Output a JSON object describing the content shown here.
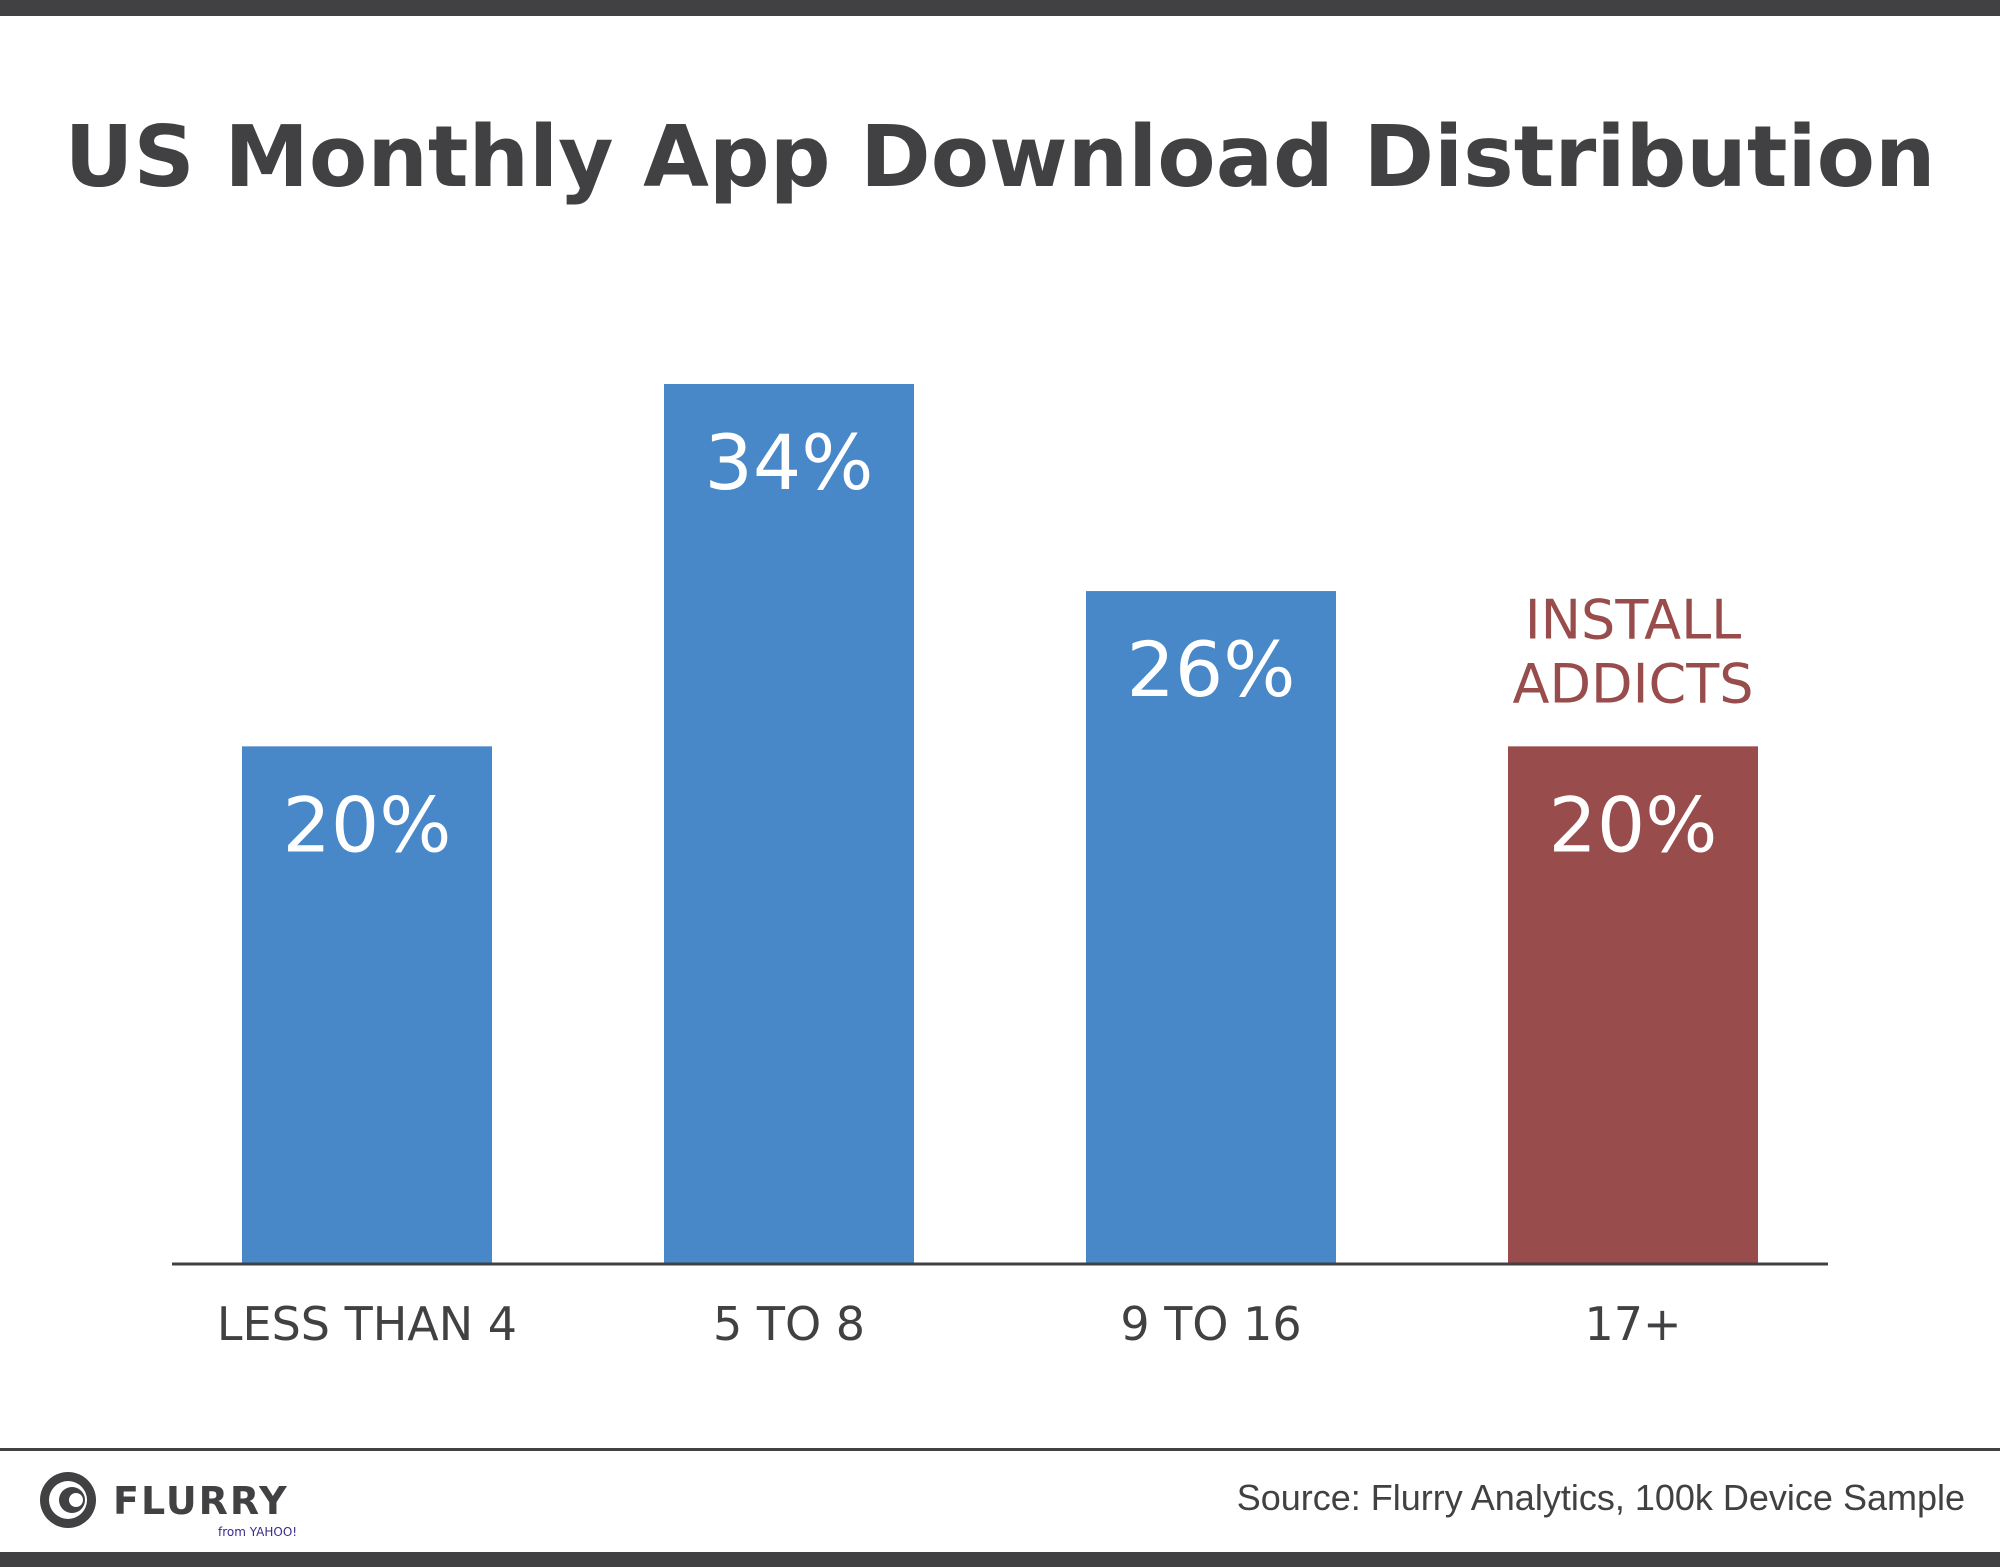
{
  "title": "US Monthly App Download Distribution",
  "source": "Source: Flurry Analytics, 100k Device Sample",
  "logo": {
    "name": "FLURRY",
    "tagline": "from YAHOO!"
  },
  "colors": {
    "primary": "#4888C8",
    "highlight": "#984C4C",
    "text": "#414042",
    "label_on_bar": "#ffffff"
  },
  "chart_data": {
    "type": "bar",
    "title": "US Monthly App Download Distribution",
    "categories": [
      "LESS THAN 4",
      "5 TO 8",
      "9 TO 16",
      "17+"
    ],
    "values": [
      20,
      34,
      26,
      20
    ],
    "value_labels": [
      "20%",
      "34%",
      "26%",
      "20%"
    ],
    "unit": "%",
    "highlight_index": 3,
    "annotation": {
      "category_index": 3,
      "lines": [
        "INSTALL",
        "ADDICTS"
      ]
    },
    "xlabel": "",
    "ylabel": "",
    "ylim": [
      0,
      34
    ],
    "grid": false,
    "legend": "none"
  }
}
